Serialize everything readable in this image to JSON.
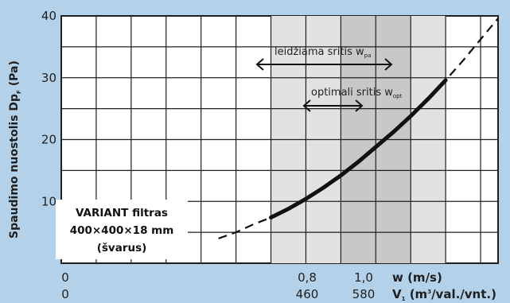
{
  "chart_data": {
    "type": "line",
    "ylabel_main": "Spaudimo nuostolis Dp",
    "ylabel_sub": "F",
    "ylabel_unit": " (Pa)",
    "ylim": [
      0,
      40
    ],
    "yticks": [
      10,
      20,
      30,
      40
    ],
    "xticks_w": [
      "0",
      "0,8",
      "1,0"
    ],
    "xticks_v": [
      "0",
      "460",
      "580"
    ],
    "xunit_w": "w (m/s)",
    "xunit_v_sym": "V",
    "xunit_v_sub": "1",
    "xunit_v_a": " (m",
    "xunit_v_sup": "3",
    "xunit_v_b": "/val./vnt.)",
    "xlim_w": [
      0,
      1.25
    ],
    "zones": {
      "allowed": {
        "label_main": "leidžiama sritis w",
        "label_sub": "pa",
        "w_range": [
          0.6,
          1.1
        ]
      },
      "optimal": {
        "label_main": "optimali sritis w",
        "label_sub": "opt",
        "w_range": [
          0.8,
          1.0
        ]
      }
    },
    "series": [
      {
        "points": [
          [
            0.45,
            4.0
          ],
          [
            0.5,
            5.0
          ],
          [
            0.55,
            6.3
          ],
          [
            0.6,
            7.4
          ],
          [
            0.65,
            8.8
          ],
          [
            0.7,
            10.4
          ],
          [
            0.75,
            12.2
          ],
          [
            0.8,
            14.2
          ],
          [
            0.85,
            16.4
          ],
          [
            0.9,
            18.8
          ],
          [
            0.95,
            21.2
          ],
          [
            1.0,
            23.8
          ],
          [
            1.05,
            26.6
          ],
          [
            1.1,
            29.6
          ],
          [
            1.15,
            32.8
          ],
          [
            1.2,
            36.2
          ],
          [
            1.25,
            39.6
          ]
        ]
      }
    ],
    "annotation_lines": [
      "VARIANT filtras",
      "400×400×18 mm",
      "(švarus)"
    ]
  }
}
